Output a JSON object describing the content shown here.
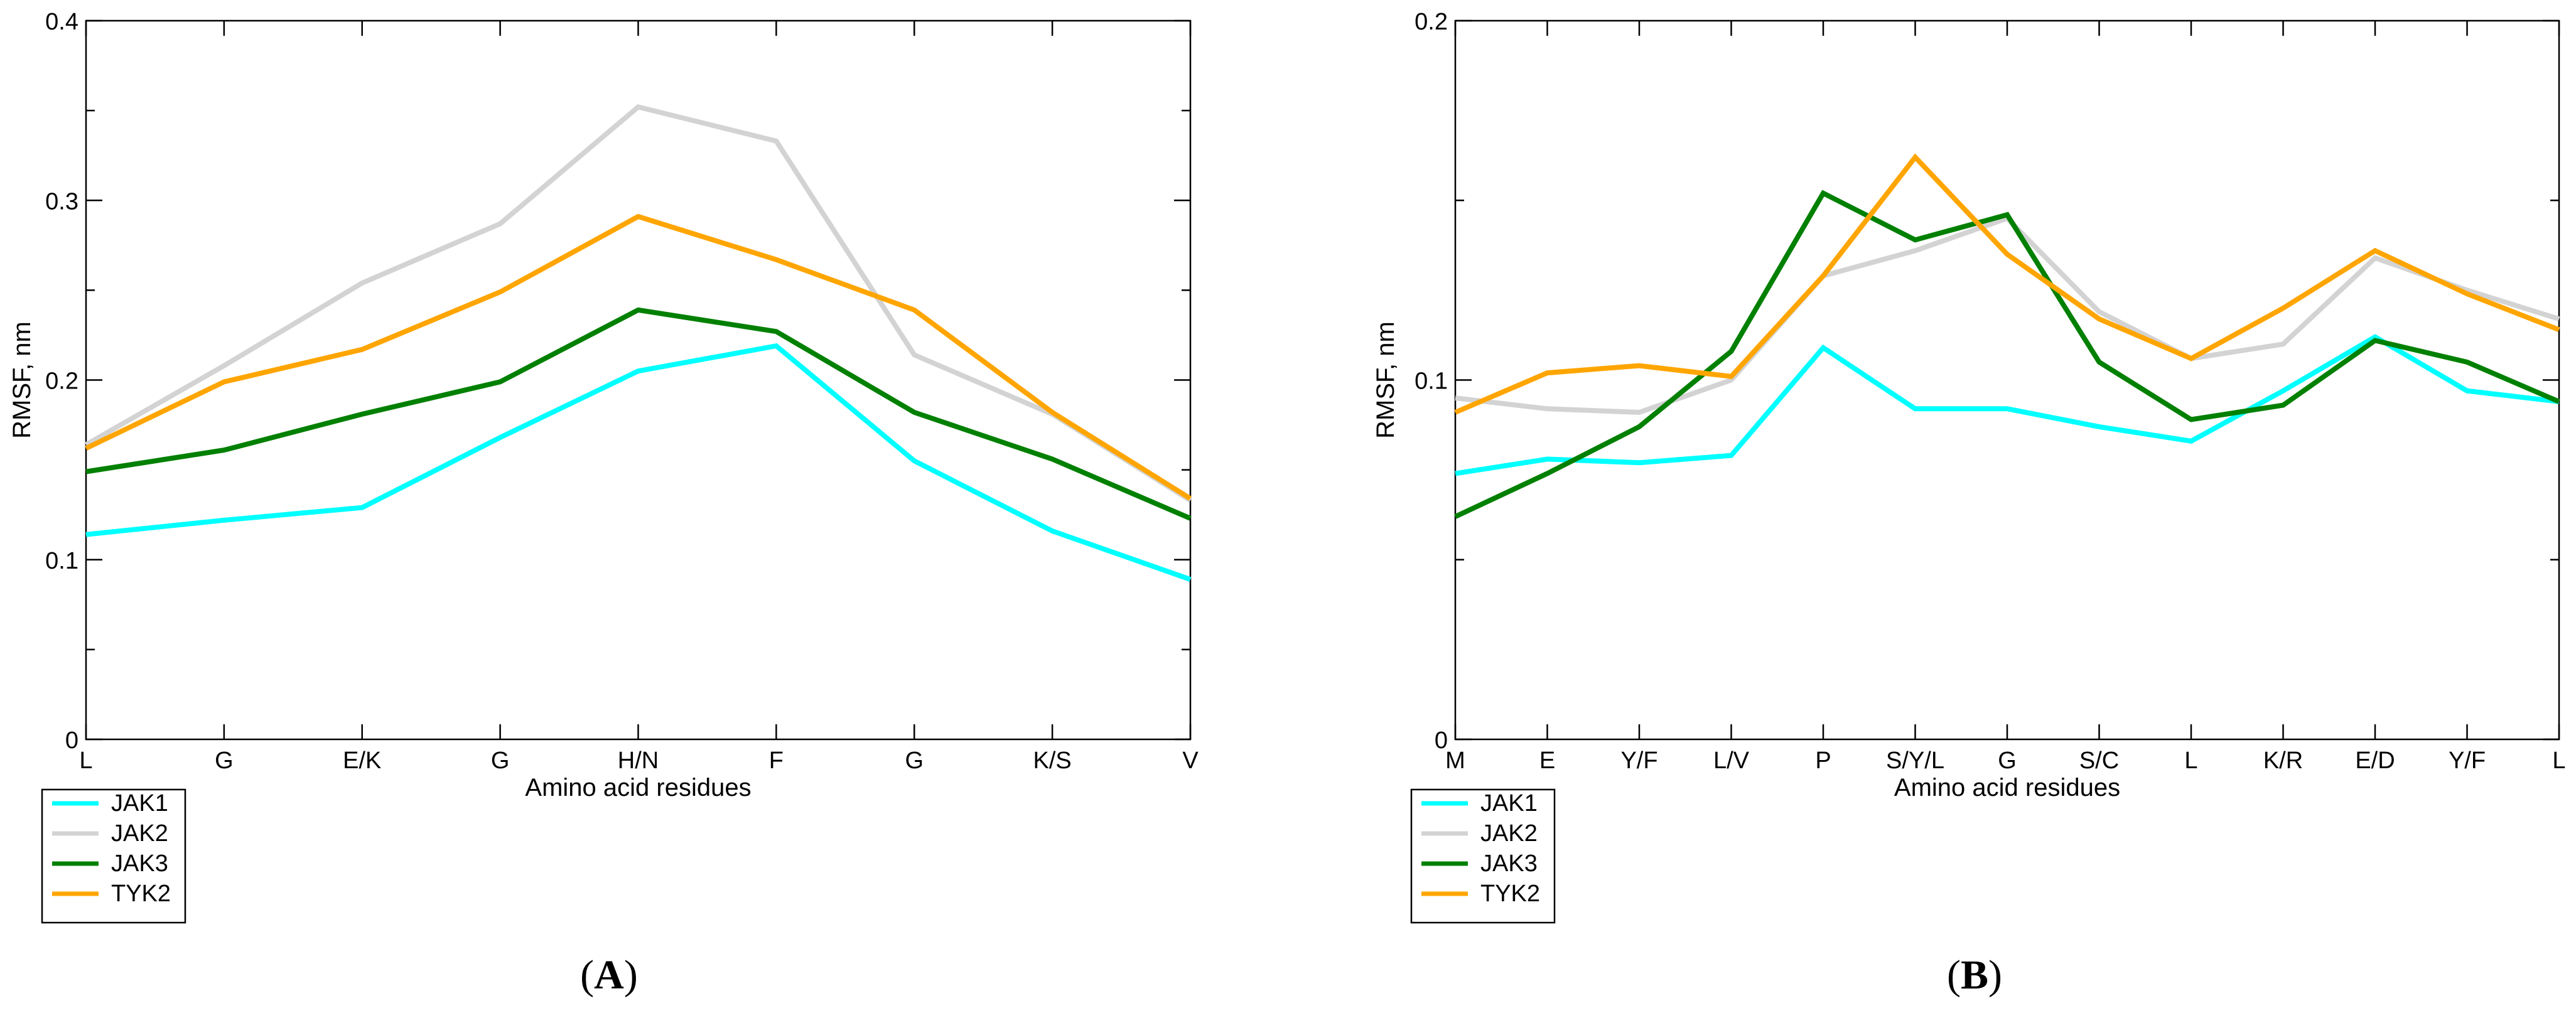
{
  "chart_data": [
    {
      "type": "line",
      "panel_label": "A",
      "xlabel": "Amino acid residues",
      "ylabel": "RMSF, nm",
      "categories": [
        "L",
        "G",
        "E/K",
        "G",
        "H/N",
        "F",
        "G",
        "K/S",
        "V"
      ],
      "ylim": [
        0,
        0.4
      ],
      "yticks": [
        0,
        0.1,
        0.2,
        0.3,
        0.4
      ],
      "ytick_labels": [
        "0",
        "0.1",
        "0.2",
        "0.3",
        "0.4"
      ],
      "grid": false,
      "legend_position": "below-left",
      "series": [
        {
          "name": "JAK1",
          "color": "#00ffff",
          "values": [
            0.114,
            0.122,
            0.129,
            0.168,
            0.205,
            0.219,
            0.155,
            0.116,
            0.089
          ]
        },
        {
          "name": "JAK2",
          "color": "#d3d3d3",
          "values": [
            0.164,
            0.208,
            0.254,
            0.287,
            0.352,
            0.333,
            0.214,
            0.181,
            0.133
          ]
        },
        {
          "name": "JAK3",
          "color": "#008000",
          "values": [
            0.149,
            0.161,
            0.181,
            0.199,
            0.239,
            0.227,
            0.182,
            0.156,
            0.123
          ]
        },
        {
          "name": "TYK2",
          "color": "#ffa500",
          "values": [
            0.162,
            0.199,
            0.217,
            0.249,
            0.291,
            0.267,
            0.239,
            0.182,
            0.134
          ]
        }
      ]
    },
    {
      "type": "line",
      "panel_label": "B",
      "xlabel": "Amino acid residues",
      "ylabel": "RMSF, nm",
      "categories": [
        "M",
        "E",
        "Y/F",
        "L/V",
        "P",
        "S/Y/L",
        "G",
        "S/C",
        "L",
        "K/R",
        "E/D",
        "Y/F",
        "L"
      ],
      "ylim": [
        0,
        0.2
      ],
      "yticks": [
        0,
        0.1,
        0.2
      ],
      "ytick_labels": [
        "0",
        "0.1",
        "0.2"
      ],
      "grid": false,
      "legend_position": "below-left",
      "series": [
        {
          "name": "JAK1",
          "color": "#00ffff",
          "values": [
            0.074,
            0.078,
            0.077,
            0.079,
            0.109,
            0.092,
            0.092,
            0.087,
            0.083,
            0.097,
            0.112,
            0.097,
            0.094
          ]
        },
        {
          "name": "JAK2",
          "color": "#d3d3d3",
          "values": [
            0.095,
            0.092,
            0.091,
            0.1,
            0.129,
            0.136,
            0.145,
            0.119,
            0.106,
            0.11,
            0.134,
            0.125,
            0.117
          ]
        },
        {
          "name": "JAK3",
          "color": "#008000",
          "values": [
            0.062,
            0.074,
            0.087,
            0.108,
            0.152,
            0.139,
            0.146,
            0.105,
            0.089,
            0.093,
            0.111,
            0.105,
            0.094
          ]
        },
        {
          "name": "TYK2",
          "color": "#ffa500",
          "values": [
            0.091,
            0.102,
            0.104,
            0.101,
            0.129,
            0.162,
            0.135,
            0.117,
            0.106,
            0.12,
            0.136,
            0.124,
            0.114
          ]
        }
      ]
    }
  ]
}
